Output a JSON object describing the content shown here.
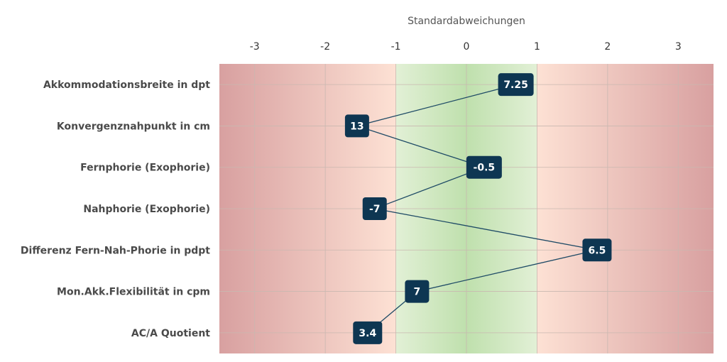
{
  "chart_data": {
    "type": "line",
    "orientation": "horizontal",
    "title": "",
    "xlabel": "Standardabweichungen",
    "xlabel_position": "top",
    "xlim": [
      -3.5,
      3.5
    ],
    "xticks": [
      -3,
      -2,
      -1,
      0,
      1,
      2,
      3
    ],
    "xtick_labels": [
      "-3",
      "-2",
      "-1",
      "0",
      "1",
      "2",
      "3"
    ],
    "grid": true,
    "legend": "none",
    "categories": [
      "Akkommodationsbreite in dpt",
      "Konvergenznahpunkt in cm",
      "Fernphorie (Exophorie)",
      "Nahphorie (Exophorie)",
      "Differenz Fern-Nah-Phorie in pdpt",
      "Mon.Akk.Flexibilität in cpm",
      "AC/A Quotient"
    ],
    "series": [
      {
        "x": [
          0.7,
          -1.55,
          0.25,
          -1.3,
          1.85,
          -0.7,
          -1.4
        ],
        "labels": [
          "7.25",
          "13",
          "-0.5",
          "-7",
          "6.5",
          "7",
          "3.4"
        ]
      }
    ],
    "bands": [
      {
        "from": -1,
        "to": 1,
        "color": "#c7e4b8"
      },
      {
        "from": -3.5,
        "to": -1,
        "color_inner": "#fde1d4",
        "color_outer": "#d8a0a0"
      },
      {
        "from": 1,
        "to": 3.5,
        "color_inner": "#fde1d4",
        "color_outer": "#d8a0a0"
      }
    ],
    "colors": {
      "line": "#1f4b66",
      "marker": "#0e3652",
      "grid": "#c9b8b0"
    }
  }
}
